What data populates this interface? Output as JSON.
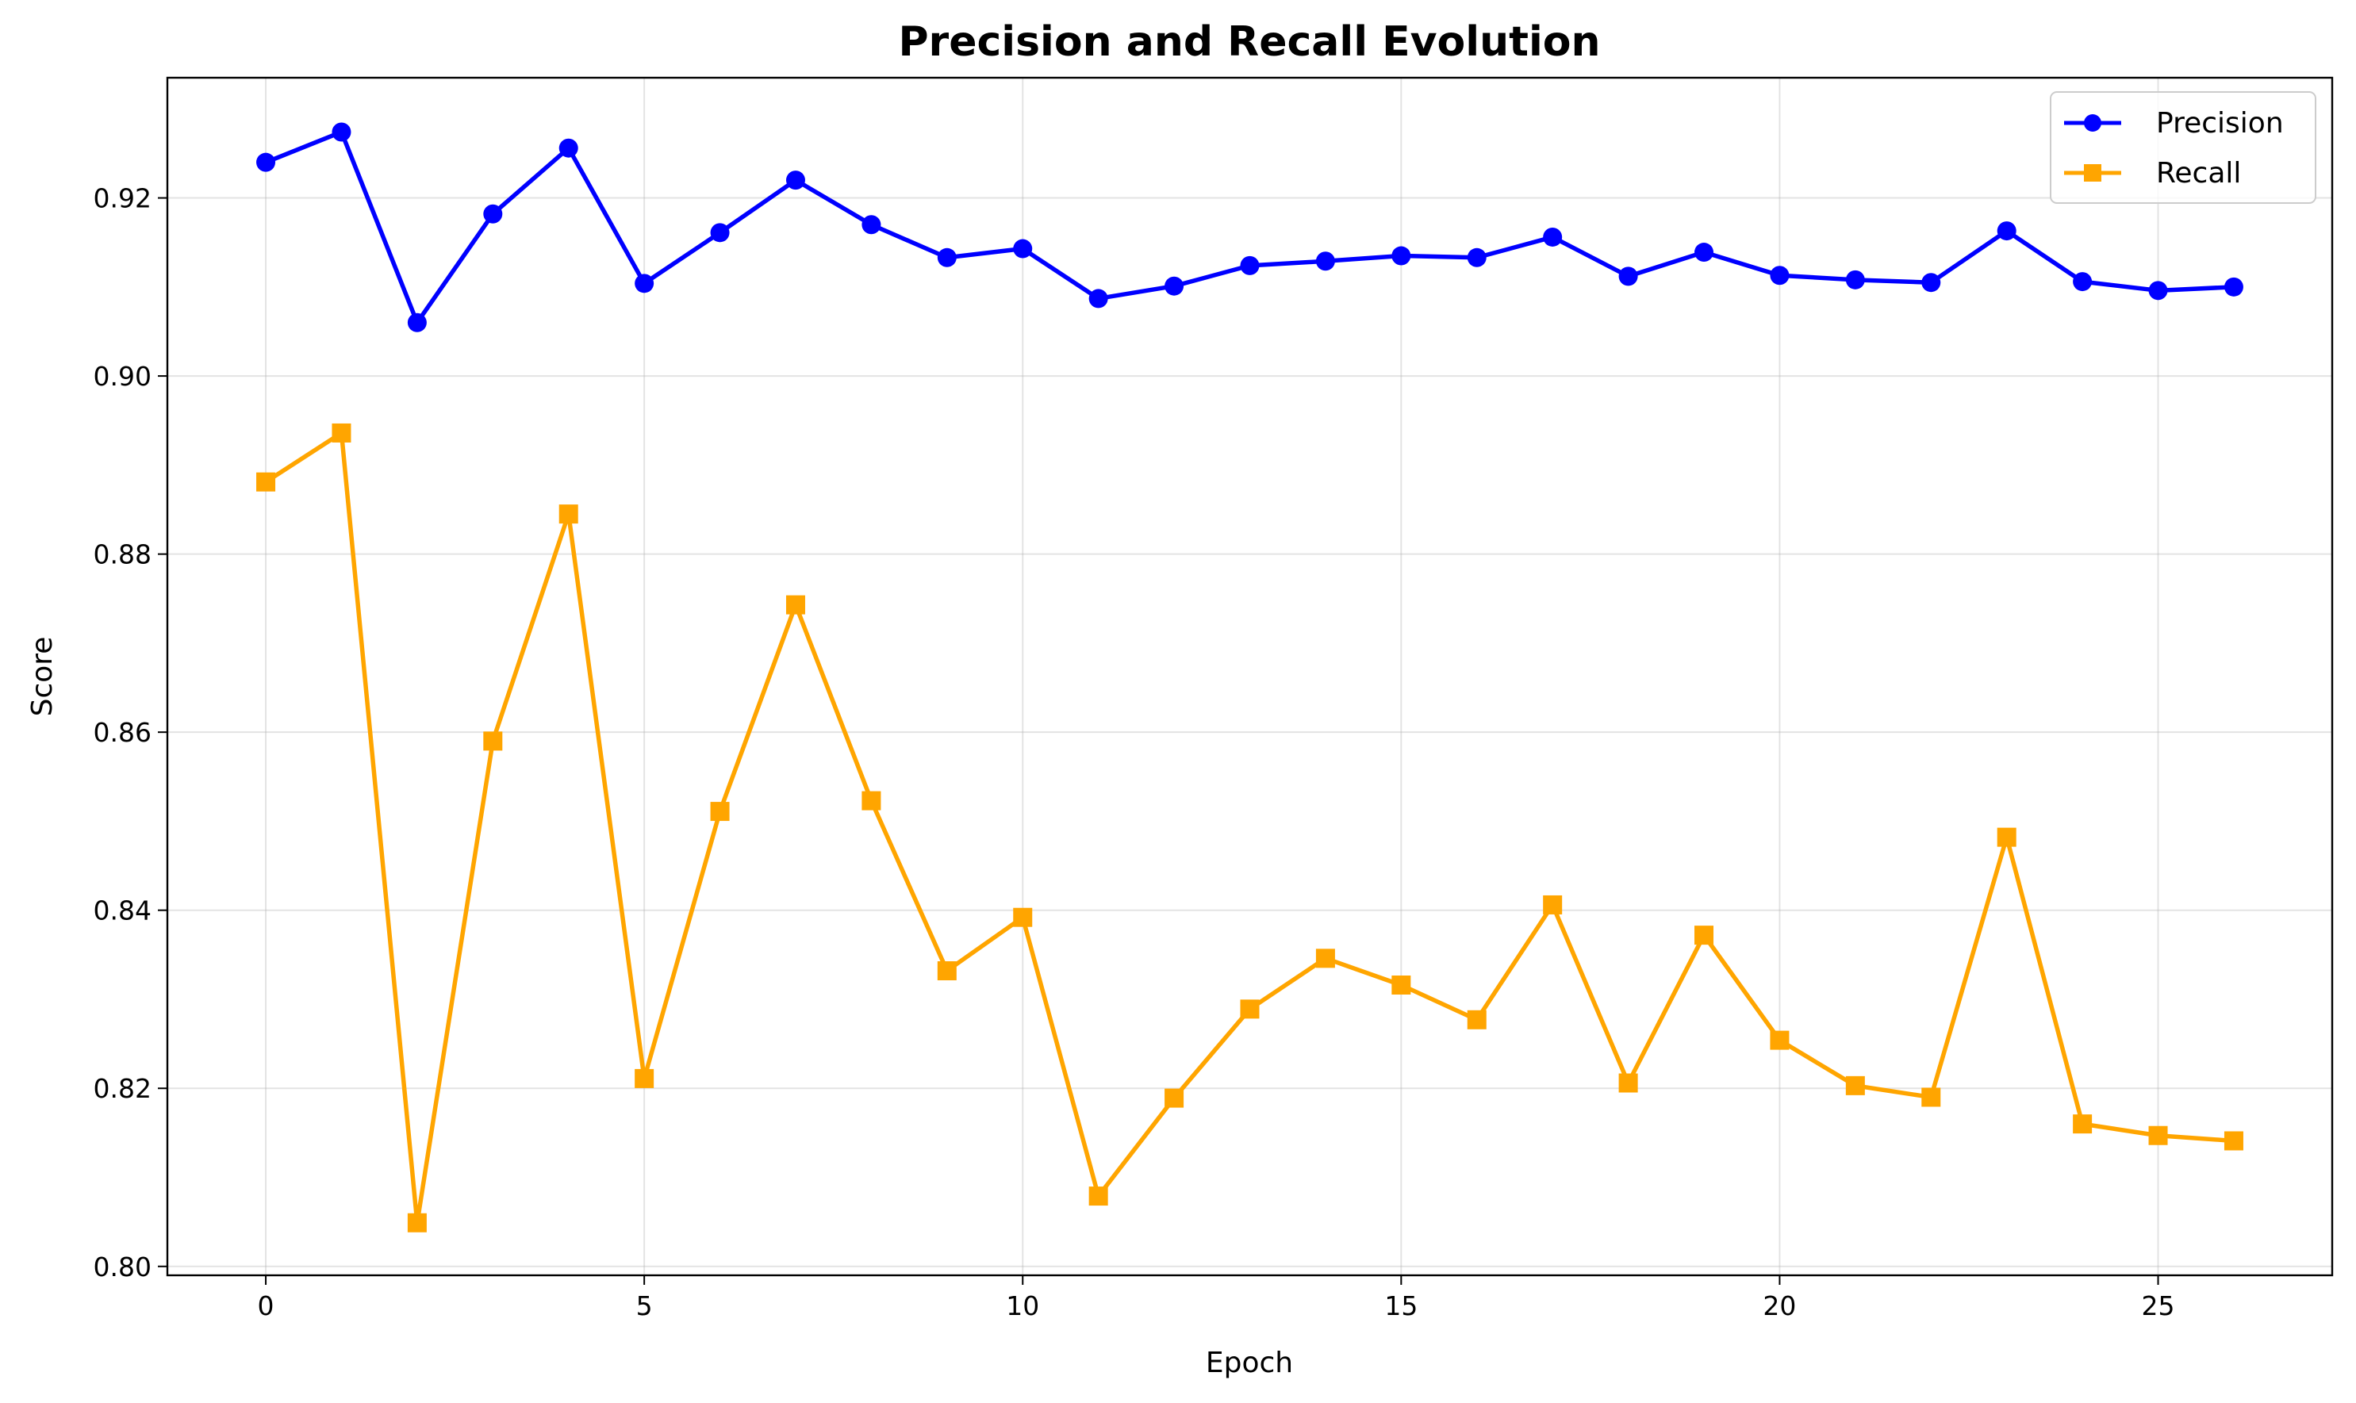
{
  "chart_data": {
    "type": "line",
    "title": "Precision and Recall Evolution",
    "xlabel": "Epoch",
    "ylabel": "Score",
    "xlim": [
      -1.3,
      27.3
    ],
    "ylim": [
      0.799,
      0.9335
    ],
    "xticks": [
      0,
      5,
      10,
      15,
      20,
      25
    ],
    "xtick_labels": [
      "0",
      "5",
      "10",
      "15",
      "20",
      "25"
    ],
    "yticks": [
      0.8,
      0.82,
      0.84,
      0.86,
      0.88,
      0.9,
      0.92
    ],
    "ytick_labels": [
      "0.80",
      "0.82",
      "0.84",
      "0.86",
      "0.88",
      "0.90",
      "0.92"
    ],
    "grid": true,
    "legend_position": "top-right",
    "x": [
      0,
      1,
      2,
      3,
      4,
      5,
      6,
      7,
      8,
      9,
      10,
      11,
      12,
      13,
      14,
      15,
      16,
      17,
      18,
      19,
      20,
      21,
      22,
      23,
      24,
      25,
      26
    ],
    "series": [
      {
        "name": "Precision",
        "color": "#0000ff",
        "marker": "circle",
        "values": [
          0.924,
          0.9274,
          0.906,
          0.9182,
          0.9256,
          0.9104,
          0.9161,
          0.922,
          0.917,
          0.9133,
          0.9143,
          0.9087,
          0.9101,
          0.9124,
          0.9129,
          0.9135,
          0.9133,
          0.9156,
          0.9112,
          0.9139,
          0.9113,
          0.9108,
          0.9105,
          0.9163,
          0.9106,
          0.9096,
          0.91
        ]
      },
      {
        "name": "Recall",
        "color": "#ffa500",
        "marker": "square",
        "values": [
          0.8881,
          0.8936,
          0.8049,
          0.859,
          0.8845,
          0.8211,
          0.8511,
          0.8743,
          0.8523,
          0.8332,
          0.8392,
          0.8079,
          0.8189,
          0.8289,
          0.8346,
          0.8316,
          0.8277,
          0.8406,
          0.8206,
          0.8372,
          0.8254,
          0.8203,
          0.819,
          0.8482,
          0.816,
          0.8147,
          0.8141
        ]
      }
    ]
  }
}
